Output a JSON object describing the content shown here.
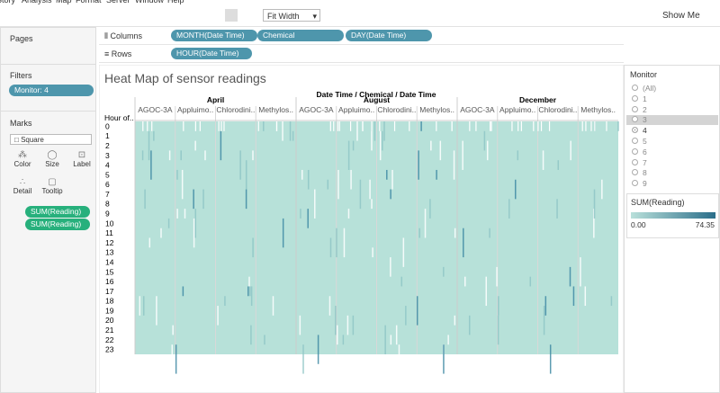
{
  "menu": [
    "Story",
    "Analysis",
    "Map",
    "Format",
    "Server",
    "Window",
    "Help"
  ],
  "toolbar": {
    "fit": "Fit Width",
    "show_me": "Show Me"
  },
  "pages": {
    "title": "Pages"
  },
  "shelves": {
    "columns_label": "Columns",
    "columns": [
      "MONTH(Date Time)",
      "Chemical",
      "DAY(Date Time)"
    ],
    "rows_label": "Rows",
    "rows": [
      "HOUR(Date Time)"
    ]
  },
  "filters": {
    "title": "Filters",
    "items": [
      "Monitor: 4"
    ]
  },
  "marks": {
    "title": "Marks",
    "type": "Square",
    "buttons": [
      "Color",
      "Size",
      "Label",
      "Detail",
      "Tooltip"
    ],
    "pills": [
      "SUM(Reading)",
      "SUM(Reading)"
    ]
  },
  "view": {
    "title": "Heat Map of sensor readings",
    "header": "Date Time / Chemical / Date Time",
    "months": [
      "April",
      "August",
      "December"
    ],
    "chemicals": [
      "AGOC-3A",
      "Appluimo..",
      "Chlorodini..",
      "Methylos.."
    ],
    "row_header": "Hour of..",
    "hours": [
      "0",
      "1",
      "2",
      "3",
      "4",
      "5",
      "6",
      "7",
      "8",
      "9",
      "10",
      "11",
      "12",
      "13",
      "14",
      "15",
      "16",
      "17",
      "18",
      "19",
      "20",
      "21",
      "22",
      "23"
    ]
  },
  "monitor": {
    "title": "Monitor",
    "options": [
      "(All)",
      "1",
      "2",
      "3",
      "4",
      "5",
      "6",
      "7",
      "8",
      "9"
    ],
    "selected": "4",
    "highlighted": "3"
  },
  "legend": {
    "title": "SUM(Reading)",
    "min": "0.00",
    "max": "74.35"
  }
}
